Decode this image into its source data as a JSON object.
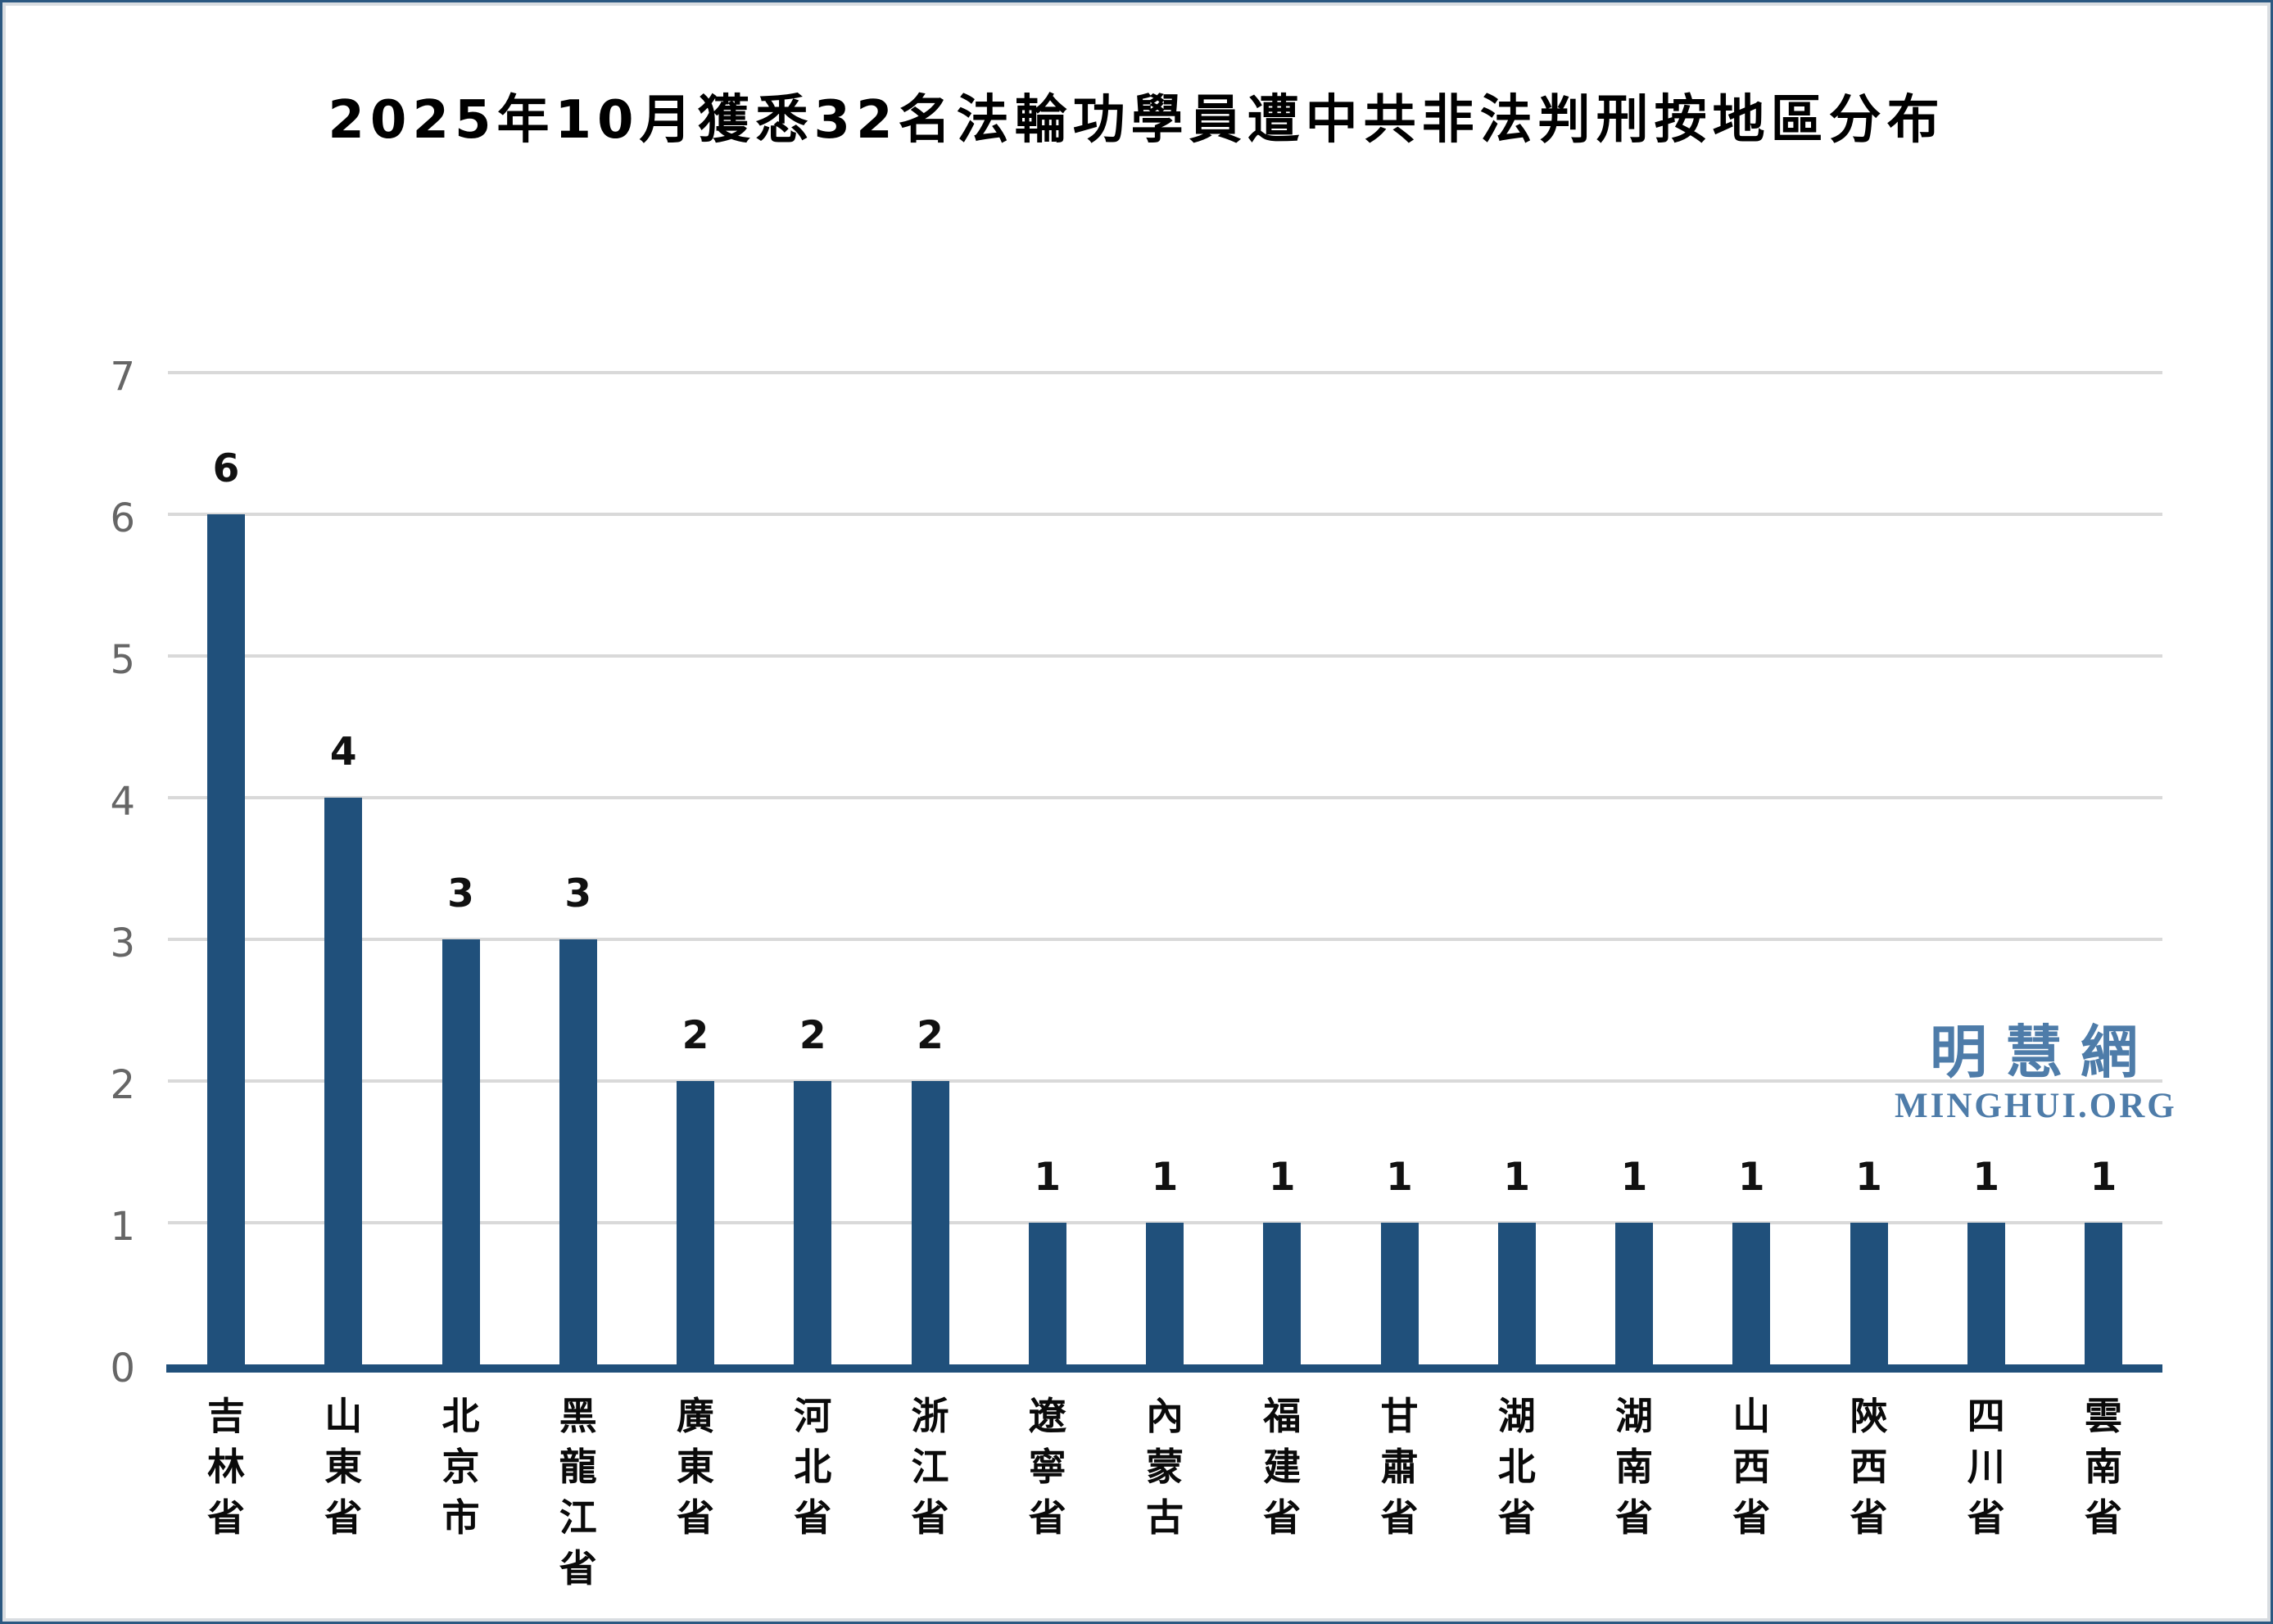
{
  "title": "2025年10月獲悉32名法輪功學員遭中共非法判刑按地區分布",
  "watermark": {
    "cjk": "明慧網",
    "latin": "MINGHUI.ORG",
    "color": "#4E7CA9"
  },
  "chart_data": {
    "type": "bar",
    "title": "2025年10月獲悉32名法輪功學員遭中共非法判刑按地區分布",
    "categories": [
      "吉林省",
      "山東省",
      "北京市",
      "黑龍江省",
      "廣東省",
      "河北省",
      "浙江省",
      "遼寧省",
      "內蒙古",
      "福建省",
      "甘肅省",
      "湖北省",
      "湖南省",
      "山西省",
      "陝西省",
      "四川省",
      "雲南省"
    ],
    "values": [
      6,
      4,
      3,
      3,
      2,
      2,
      2,
      1,
      1,
      1,
      1,
      1,
      1,
      1,
      1,
      1,
      1
    ],
    "total": 32,
    "xlabel": "",
    "ylabel": "",
    "ylim": [
      0,
      7
    ],
    "yticks": [
      0,
      1,
      2,
      3,
      4,
      5,
      6,
      7
    ],
    "grid": "horizontal",
    "legend": "none",
    "data_labels": true,
    "colors": {
      "bar": "#20507B",
      "axis_line": "#20507B",
      "gridline": "#D9D9D9",
      "tick_label": "#666666",
      "value_label": "#111111",
      "category_label": "#0A0A0A",
      "background": "#FFFFFF",
      "border_outer": "#2B5881",
      "border_inner": "#D9DDE1"
    }
  }
}
